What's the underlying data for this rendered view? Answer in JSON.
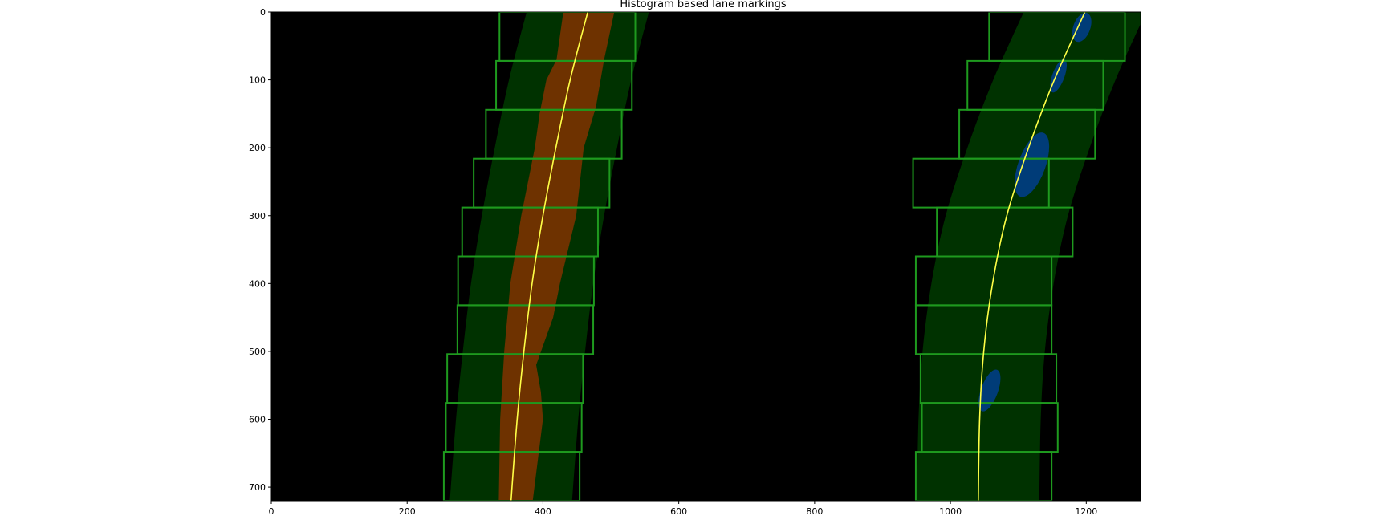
{
  "chart_data": {
    "type": "image",
    "title": "Histogram based lane markings",
    "xlabel": "",
    "ylabel": "",
    "xlim": [
      0,
      1280
    ],
    "ylim": [
      720,
      0
    ],
    "xticks": [
      0,
      200,
      400,
      600,
      800,
      1000,
      1200
    ],
    "yticks": [
      0,
      100,
      200,
      300,
      400,
      500,
      600,
      700
    ],
    "grid": false,
    "colors": {
      "background": "#000000",
      "search_region": "#003200",
      "window_outline": "#1e9a1e",
      "left_lane_pixels": "#6e3200",
      "right_lane_pixels": "#003c78",
      "fit_line": "#ffff46"
    },
    "left_fit": {
      "name": "left lane fit",
      "y": [
        0,
        100,
        200,
        300,
        400,
        500,
        600,
        720
      ],
      "x": [
        466,
        440,
        419,
        400,
        384,
        372,
        362,
        353
      ]
    },
    "right_fit": {
      "name": "right lane fit",
      "y": [
        0,
        100,
        200,
        300,
        400,
        500,
        600,
        720
      ],
      "x": [
        1198,
        1153,
        1115,
        1083,
        1062,
        1049,
        1043,
        1041
      ]
    },
    "search_margin": 90,
    "windows_left": [
      {
        "y_top": 0,
        "y_bottom": 72,
        "x_left": 336,
        "x_right": 536
      },
      {
        "y_top": 72,
        "y_bottom": 144,
        "x_left": 331,
        "x_right": 531
      },
      {
        "y_top": 144,
        "y_bottom": 216,
        "x_left": 316,
        "x_right": 516
      },
      {
        "y_top": 216,
        "y_bottom": 288,
        "x_left": 298,
        "x_right": 498
      },
      {
        "y_top": 288,
        "y_bottom": 360,
        "x_left": 281,
        "x_right": 481
      },
      {
        "y_top": 360,
        "y_bottom": 432,
        "x_left": 275,
        "x_right": 475
      },
      {
        "y_top": 432,
        "y_bottom": 504,
        "x_left": 274,
        "x_right": 474
      },
      {
        "y_top": 504,
        "y_bottom": 576,
        "x_left": 259,
        "x_right": 459
      },
      {
        "y_top": 576,
        "y_bottom": 648,
        "x_left": 257,
        "x_right": 457
      },
      {
        "y_top": 648,
        "y_bottom": 720,
        "x_left": 254,
        "x_right": 454
      }
    ],
    "windows_right": [
      {
        "y_top": 0,
        "y_bottom": 72,
        "x_left": 1057,
        "x_right": 1257
      },
      {
        "y_top": 72,
        "y_bottom": 144,
        "x_left": 1025,
        "x_right": 1225
      },
      {
        "y_top": 144,
        "y_bottom": 216,
        "x_left": 1013,
        "x_right": 1213
      },
      {
        "y_top": 216,
        "y_bottom": 288,
        "x_left": 945,
        "x_right": 1145
      },
      {
        "y_top": 288,
        "y_bottom": 360,
        "x_left": 980,
        "x_right": 1180
      },
      {
        "y_top": 360,
        "y_bottom": 432,
        "x_left": 949,
        "x_right": 1149
      },
      {
        "y_top": 432,
        "y_bottom": 504,
        "x_left": 949,
        "x_right": 1149
      },
      {
        "y_top": 504,
        "y_bottom": 576,
        "x_left": 956,
        "x_right": 1156
      },
      {
        "y_top": 576,
        "y_bottom": 648,
        "x_left": 958,
        "x_right": 1158
      },
      {
        "y_top": 648,
        "y_bottom": 720,
        "x_left": 949,
        "x_right": 1149
      }
    ],
    "left_lane_pixels": {
      "left_edge": [
        {
          "y": 0,
          "x": 430
        },
        {
          "y": 70,
          "x": 420
        },
        {
          "y": 100,
          "x": 405
        },
        {
          "y": 150,
          "x": 395
        },
        {
          "y": 200,
          "x": 388
        },
        {
          "y": 300,
          "x": 368
        },
        {
          "y": 400,
          "x": 352
        },
        {
          "y": 500,
          "x": 343
        },
        {
          "y": 600,
          "x": 337
        },
        {
          "y": 720,
          "x": 335
        }
      ],
      "right_edge": [
        {
          "y": 0,
          "x": 505
        },
        {
          "y": 70,
          "x": 490
        },
        {
          "y": 140,
          "x": 478
        },
        {
          "y": 200,
          "x": 460
        },
        {
          "y": 300,
          "x": 449
        },
        {
          "y": 400,
          "x": 425
        },
        {
          "y": 450,
          "x": 415
        },
        {
          "y": 520,
          "x": 390
        },
        {
          "y": 560,
          "x": 397
        },
        {
          "y": 600,
          "x": 400
        },
        {
          "y": 720,
          "x": 385
        }
      ]
    },
    "right_lane_pixels": [
      {
        "y_top": 0,
        "y_bottom": 45,
        "x_left": 1181,
        "x_right": 1206
      },
      {
        "y_top": 68,
        "y_bottom": 120,
        "x_left": 1150,
        "x_right": 1168
      },
      {
        "y_top": 175,
        "y_bottom": 275,
        "x_left": 1100,
        "x_right": 1140
      },
      {
        "y_top": 525,
        "y_bottom": 590,
        "x_left": 1045,
        "x_right": 1070
      }
    ]
  }
}
